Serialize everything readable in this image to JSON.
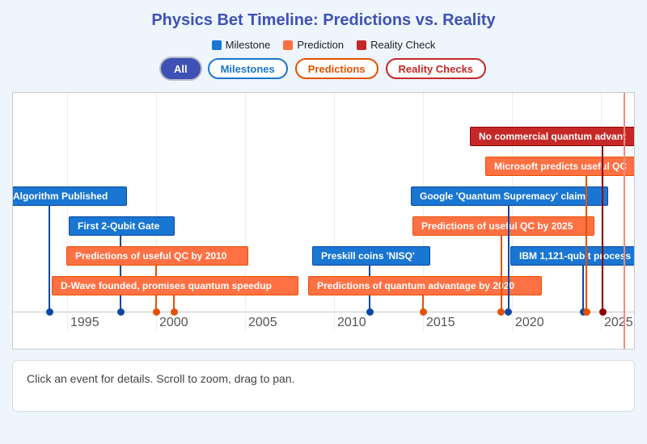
{
  "title": "Physics Bet Timeline: Predictions vs. Reality",
  "legend": [
    {
      "label": "Milestone",
      "color": "#1976d2"
    },
    {
      "label": "Prediction",
      "color": "#ff7043"
    },
    {
      "label": "Reality Check",
      "color": "#c62828"
    }
  ],
  "filters": [
    {
      "label": "All",
      "active": true,
      "color": "#3f51b5"
    },
    {
      "label": "Milestones",
      "active": false,
      "color": "#1976d2"
    },
    {
      "label": "Predictions",
      "active": false,
      "color": "#e65100"
    },
    {
      "label": "Reality Checks",
      "active": false,
      "color": "#c62828"
    }
  ],
  "type_colors": {
    "milestone": {
      "fill": "#1976d2",
      "border": "#0d47a1",
      "dot": "#0d47a1"
    },
    "prediction": {
      "fill": "#ff7043",
      "border": "#e65100",
      "dot": "#e65100"
    },
    "reality": {
      "fill": "#c62828",
      "border": "#8e0000",
      "dot": "#8b0000"
    }
  },
  "axis_ticks": [
    "1995",
    "2000",
    "2005",
    "2010",
    "2015",
    "2020",
    "2025"
  ],
  "today_year": 2026.3,
  "events": [
    {
      "label": "Algorithm Published",
      "type": "milestone",
      "year": 1994.0
    },
    {
      "label": "First 2-Qubit Gate",
      "type": "milestone",
      "year": 1998.0
    },
    {
      "label": "Predictions of useful QC by 2010",
      "type": "prediction",
      "year": 2000.0
    },
    {
      "label": "D-Wave founded, promises quantum speedup",
      "type": "prediction",
      "year": 2001.0
    },
    {
      "label": "Preskill coins 'NISQ'",
      "type": "milestone",
      "year": 2012.0
    },
    {
      "label": "Predictions of quantum advantage by 2020",
      "type": "prediction",
      "year": 2015.0
    },
    {
      "label": "Predictions of useful QC by 2025",
      "type": "prediction",
      "year": 2019.4
    },
    {
      "label": "Google 'Quantum Supremacy' claim",
      "type": "milestone",
      "year": 2019.8
    },
    {
      "label": "IBM 1,121-qubit process",
      "type": "milestone",
      "year": 2024.0
    },
    {
      "label": "Microsoft predicts useful QC",
      "type": "prediction",
      "year": 2024.2
    },
    {
      "label": "No commercial quantum advant",
      "type": "reality",
      "year": 2025.1
    }
  ],
  "details_text": "Click an event for details. Scroll to zoom, drag to pan."
}
